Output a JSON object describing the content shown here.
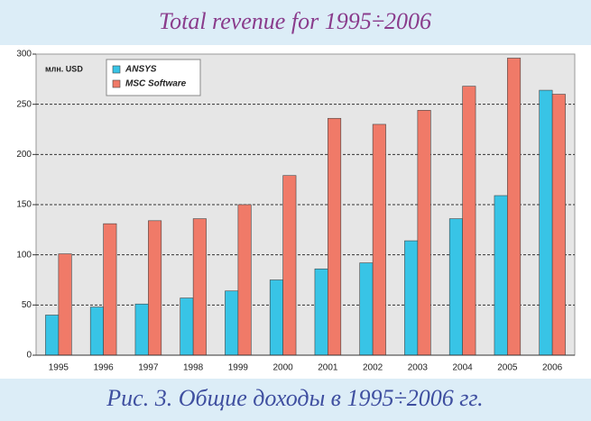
{
  "chart_data": {
    "type": "bar",
    "title": "Total revenue for 1995÷2006",
    "caption": "Рис. 3. Общие доходы в 1995÷2006 гг.",
    "y_label": "млн. USD",
    "categories": [
      "1995",
      "1996",
      "1997",
      "1998",
      "1999",
      "2000",
      "2001",
      "2002",
      "2003",
      "2004",
      "2005",
      "2006"
    ],
    "series": [
      {
        "name": "ANSYS",
        "color": "#38c4e6",
        "values": [
          40,
          48,
          51,
          57,
          64,
          75,
          86,
          92,
          114,
          136,
          159,
          264
        ]
      },
      {
        "name": "MSC Software",
        "color": "#f07a68",
        "values": [
          101,
          131,
          134,
          136,
          150,
          179,
          236,
          230,
          244,
          268,
          296,
          260
        ]
      }
    ],
    "ylim": [
      0,
      300
    ],
    "yticks": [
      0,
      50,
      100,
      150,
      200,
      250,
      300
    ],
    "grid": true,
    "legend": "upper left"
  }
}
